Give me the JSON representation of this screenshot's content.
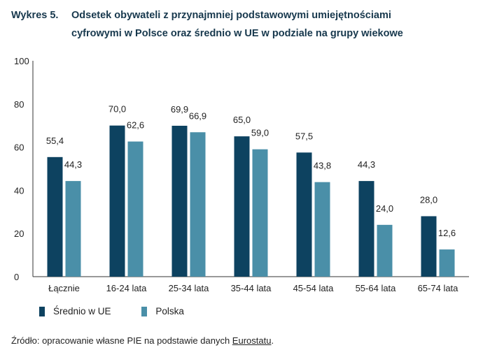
{
  "title": {
    "label": "Wykres 5.",
    "line1": "Odsetek obywateli z przynajmniej podstawowymi umiejętnościami",
    "line2": "cyfrowymi w Polsce oraz średnio w UE w podziale na grupy wiekowe"
  },
  "colors": {
    "eu": "#0d4260",
    "pl": "#4a8fa8",
    "axis": "#333333"
  },
  "chart_data": {
    "type": "bar",
    "categories": [
      "Łącznie",
      "16-24 lata",
      "25-34 lata",
      "35-44 lata",
      "45-54 lata",
      "55-64 lata",
      "65-74 lata"
    ],
    "series": [
      {
        "name": "Średnio w UE",
        "values": [
          55.4,
          70.0,
          69.9,
          65.0,
          57.5,
          44.3,
          28.0
        ],
        "labels": [
          "55,4",
          "70,0",
          "69,9",
          "65,0",
          "57,5",
          "44,3",
          "28,0"
        ]
      },
      {
        "name": "Polska",
        "values": [
          44.3,
          62.6,
          66.9,
          59.0,
          43.8,
          24.0,
          12.6
        ],
        "labels": [
          "44,3",
          "62,6",
          "66,9",
          "59,0",
          "43,8",
          "24,0",
          "12,6"
        ]
      }
    ],
    "ylim": [
      0,
      100
    ],
    "yticks": [
      "0",
      "20",
      "40",
      "60",
      "80",
      "100"
    ],
    "legend": "bottom-left",
    "grid": false
  },
  "legend": {
    "eu": "Średnio w UE",
    "pl": "Polska"
  },
  "source": {
    "prefix": "Źródło: opracowanie własne PIE na podstawie danych ",
    "link": "Eurostatu",
    "suffix": "."
  }
}
